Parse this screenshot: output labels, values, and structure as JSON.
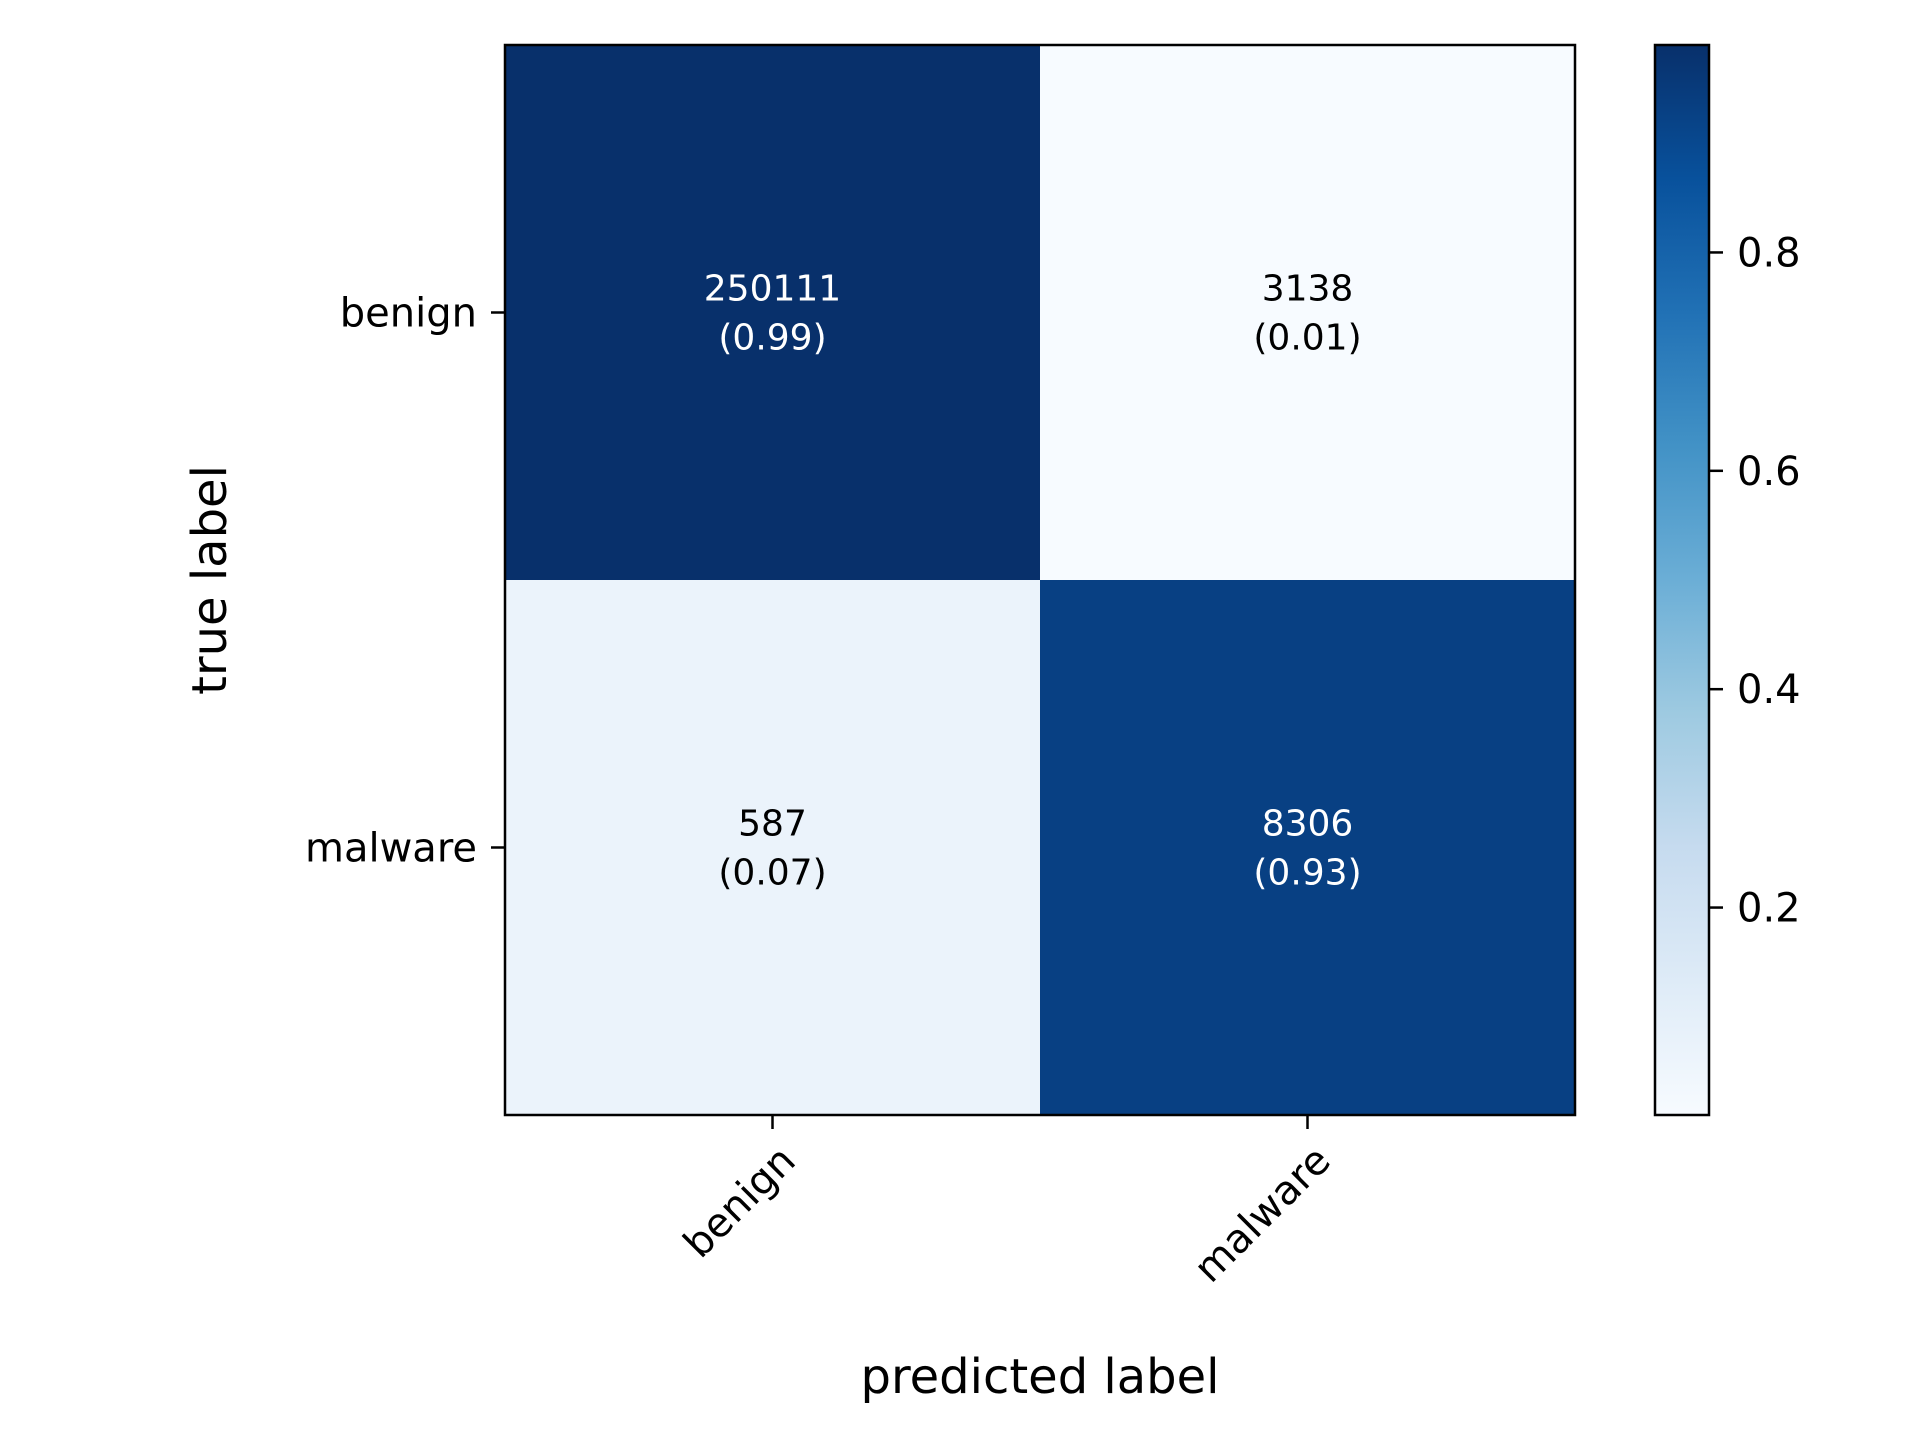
{
  "chart_data": {
    "type": "heatmap",
    "title": "",
    "xlabel": "predicted label",
    "ylabel": "true label",
    "x_categories": [
      "benign",
      "malware"
    ],
    "y_categories": [
      "benign",
      "malware"
    ],
    "counts": [
      [
        250111,
        3138
      ],
      [
        587,
        8306
      ]
    ],
    "normalized": [
      [
        0.99,
        0.01
      ],
      [
        0.07,
        0.93
      ]
    ],
    "cell_labels": [
      [
        "250111",
        "(0.99)",
        "3138",
        "(0.01)"
      ],
      [
        "587",
        "(0.07)",
        "8306",
        "(0.93)"
      ]
    ],
    "colormap": "Blues",
    "colorbar": {
      "range": [
        0.01,
        0.99
      ],
      "ticks": [
        0.2,
        0.4,
        0.6,
        0.8
      ],
      "tick_labels": [
        "0.2",
        "0.4",
        "0.6",
        "0.8"
      ]
    },
    "grid": false,
    "legend": "colorbar-right"
  }
}
